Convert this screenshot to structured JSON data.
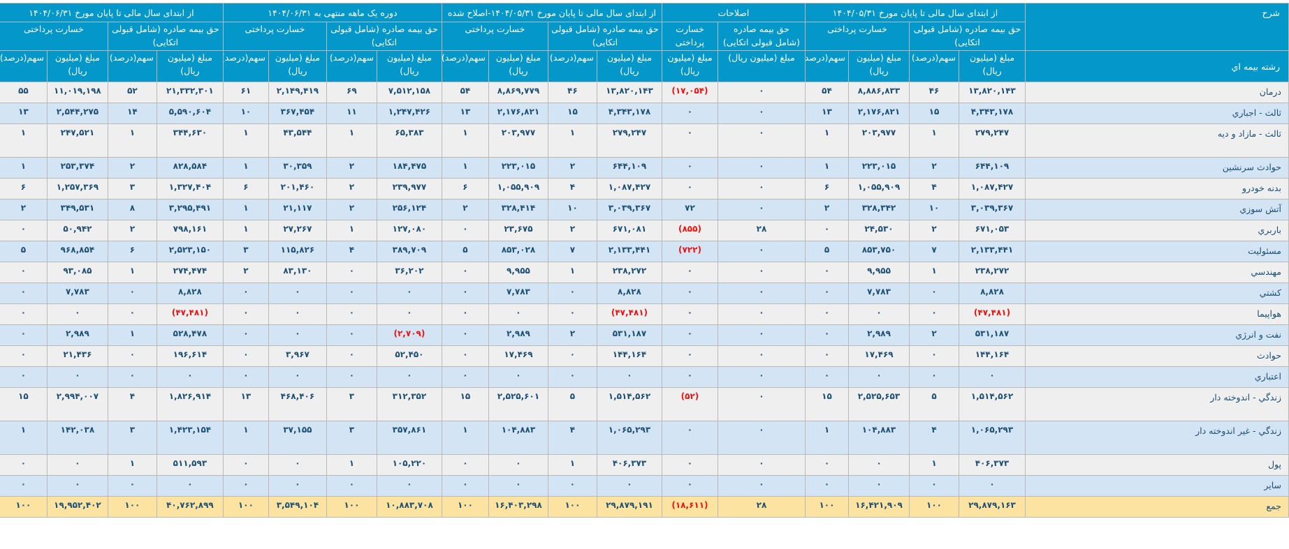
{
  "table": {
    "colors": {
      "header_bg": "#0497c9",
      "row_alt_a": "#efefef",
      "row_alt_b": "#d3e4f5",
      "total_bg": "#fde3a2",
      "negative": "#ee1111",
      "value_text": "#1d4f73"
    },
    "header": {
      "description": "شرح",
      "line_label": "رشته بیمه اي",
      "groups": [
        {
          "title": "از ابتدای سال مالی تا پایان مورخ ۱۴۰۴/۰۵/۳۱"
        },
        {
          "title": "اصلاحات"
        },
        {
          "title": "از ابتدای سال مالی تا پایان مورخ ۱۴۰۴/۰۵/۳۱-اصلاح شده"
        },
        {
          "title": "دوره یک ماهه منتهی به ۱۴۰۴/۰۶/۳۱"
        },
        {
          "title": "از ابتدای سال مالی تا پایان مورخ ۱۴۰۴/۰۶/۳۱"
        }
      ],
      "premium": "حق بیمه صادره (شامل قبولی اتکایی)",
      "loss": "خسارت پرداختی",
      "amount": "مبلغ (میلیون ریال)",
      "share": "سهم(درصد)"
    },
    "rows": [
      {
        "name": "درمان",
        "values": [
          "۱۳,۸۲۰,۱۴۳",
          "۴۶",
          "۸,۸۸۶,۸۳۳",
          "۵۴",
          "۰",
          "(۱۷,۰۵۴)",
          "۱۳,۸۲۰,۱۴۳",
          "۴۶",
          "۸,۸۶۹,۷۷۹",
          "۵۴",
          "۷,۵۱۲,۱۵۸",
          "۶۹",
          "۲,۱۴۹,۴۱۹",
          "۶۱",
          "۲۱,۳۳۲,۳۰۱",
          "۵۲",
          "۱۱,۰۱۹,۱۹۸",
          "۵۵"
        ]
      },
      {
        "name": "ثالث - اجباري",
        "values": [
          "۴,۳۴۳,۱۷۸",
          "۱۵",
          "۲,۱۷۶,۸۲۱",
          "۱۳",
          "۰",
          "۰",
          "۴,۳۴۳,۱۷۸",
          "۱۵",
          "۲,۱۷۶,۸۲۱",
          "۱۳",
          "۱,۲۴۷,۴۲۶",
          "۱۱",
          "۳۶۷,۴۵۴",
          "۱۰",
          "۵,۵۹۰,۶۰۴",
          "۱۴",
          "۲,۵۴۴,۲۷۵",
          "۱۳"
        ]
      },
      {
        "name": "ثالث - مازاد و دیه",
        "values": [
          "۲۷۹,۲۴۷",
          "۱",
          "۲۰۳,۹۷۷",
          "۱",
          "۰",
          "۰",
          "۲۷۹,۲۴۷",
          "۱",
          "۲۰۳,۹۷۷",
          "۱",
          "۶۵,۳۸۳",
          "۱",
          "۴۳,۵۴۴",
          "۱",
          "۳۴۴,۶۳۰",
          "۱",
          "۲۴۷,۵۲۱",
          "۱"
        ]
      },
      {
        "name": "حوادث سرنشين",
        "values": [
          "۶۴۴,۱۰۹",
          "۲",
          "۲۲۳,۰۱۵",
          "۱",
          "۰",
          "۰",
          "۶۴۴,۱۰۹",
          "۲",
          "۲۲۳,۰۱۵",
          "۱",
          "۱۸۴,۴۷۵",
          "۲",
          "۳۰,۳۵۹",
          "۱",
          "۸۲۸,۵۸۴",
          "۲",
          "۲۵۳,۳۷۴",
          "۱"
        ]
      },
      {
        "name": "بدنه خودرو",
        "values": [
          "۱,۰۸۷,۴۲۷",
          "۴",
          "۱,۰۵۵,۹۰۹",
          "۶",
          "۰",
          "۰",
          "۱,۰۸۷,۴۲۷",
          "۴",
          "۱,۰۵۵,۹۰۹",
          "۶",
          "۲۳۹,۹۷۷",
          "۲",
          "۲۰۱,۴۶۰",
          "۶",
          "۱,۳۲۷,۴۰۴",
          "۳",
          "۱,۲۵۷,۳۶۹",
          "۶"
        ]
      },
      {
        "name": "آتش سوزي",
        "values": [
          "۳,۰۳۹,۳۶۷",
          "۱۰",
          "۳۲۸,۳۴۲",
          "۲",
          "۰",
          "۷۲",
          "۳,۰۳۹,۳۶۷",
          "۱۰",
          "۳۲۸,۴۱۴",
          "۲",
          "۲۵۶,۱۲۴",
          "۲",
          "۲۱,۱۱۷",
          "۱",
          "۳,۲۹۵,۴۹۱",
          "۸",
          "۳۴۹,۵۳۱",
          "۲"
        ]
      },
      {
        "name": "باربري",
        "values": [
          "۶۷۱,۰۵۳",
          "۲",
          "۲۴,۵۳۰",
          "۰",
          "۲۸",
          "(۸۵۵)",
          "۶۷۱,۰۸۱",
          "۲",
          "۲۳,۶۷۵",
          "۰",
          "۱۲۷,۰۸۰",
          "۱",
          "۲۷,۲۶۷",
          "۱",
          "۷۹۸,۱۶۱",
          "۲",
          "۵۰,۹۴۲",
          "۰"
        ]
      },
      {
        "name": "مسئوليت",
        "values": [
          "۲,۱۳۳,۴۴۱",
          "۷",
          "۸۵۳,۷۵۰",
          "۵",
          "۰",
          "(۷۲۲)",
          "۲,۱۳۳,۴۴۱",
          "۷",
          "۸۵۳,۰۲۸",
          "۵",
          "۳۸۹,۷۰۹",
          "۴",
          "۱۱۵,۸۲۶",
          "۳",
          "۲,۵۲۳,۱۵۰",
          "۶",
          "۹۶۸,۸۵۴",
          "۵"
        ]
      },
      {
        "name": "مهندسي",
        "values": [
          "۲۳۸,۲۷۲",
          "۱",
          "۹,۹۵۵",
          "۰",
          "۰",
          "۰",
          "۲۳۸,۲۷۲",
          "۱",
          "۹,۹۵۵",
          "۰",
          "۳۶,۲۰۲",
          "۰",
          "۸۳,۱۳۰",
          "۲",
          "۲۷۴,۴۷۴",
          "۱",
          "۹۳,۰۸۵",
          "۰"
        ]
      },
      {
        "name": "كشتي",
        "values": [
          "۸,۸۲۸",
          "۰",
          "۷,۷۸۳",
          "۰",
          "۰",
          "۰",
          "۸,۸۲۸",
          "۰",
          "۷,۷۸۳",
          "۰",
          "۰",
          "۰",
          "۰",
          "۰",
          "۸,۸۲۸",
          "۰",
          "۷,۷۸۳",
          "۰"
        ]
      },
      {
        "name": "هواپيما",
        "values": [
          "(۴۷,۴۸۱)",
          "۰",
          "۰",
          "۰",
          "۰",
          "۰",
          "(۴۷,۴۸۱)",
          "۰",
          "۰",
          "۰",
          "۰",
          "۰",
          "۰",
          "۰",
          "(۴۷,۴۸۱)",
          "۰",
          "۰",
          "۰"
        ]
      },
      {
        "name": "نفت و انرژي",
        "values": [
          "۵۳۱,۱۸۷",
          "۲",
          "۲,۹۸۹",
          "۰",
          "۰",
          "۰",
          "۵۳۱,۱۸۷",
          "۲",
          "۲,۹۸۹",
          "۰",
          "(۲,۷۰۹)",
          "۰",
          "۰",
          "۰",
          "۵۲۸,۴۷۸",
          "۱",
          "۲,۹۸۹",
          "۰"
        ]
      },
      {
        "name": "حوادث",
        "values": [
          "۱۴۴,۱۶۴",
          "۰",
          "۱۷,۴۶۹",
          "۰",
          "۰",
          "۰",
          "۱۴۴,۱۶۴",
          "۰",
          "۱۷,۴۶۹",
          "۰",
          "۵۲,۴۵۰",
          "۰",
          "۳,۹۶۷",
          "۰",
          "۱۹۶,۶۱۴",
          "۰",
          "۲۱,۴۳۶",
          "۰"
        ]
      },
      {
        "name": "اعتباري",
        "values": [
          "۰",
          "۰",
          "۰",
          "۰",
          "۰",
          "۰",
          "۰",
          "۰",
          "۰",
          "۰",
          "۰",
          "۰",
          "۰",
          "۰",
          "۰",
          "۰",
          "۰",
          "۰"
        ]
      },
      {
        "name": "زندگي - اندوخته دار",
        "values": [
          "۱,۵۱۴,۵۶۲",
          "۵",
          "۲,۵۲۵,۶۵۳",
          "۱۵",
          "۰",
          "(۵۲)",
          "۱,۵۱۴,۵۶۲",
          "۵",
          "۲,۵۲۵,۶۰۱",
          "۱۵",
          "۳۱۲,۳۵۲",
          "۳",
          "۴۶۸,۴۰۶",
          "۱۳",
          "۱,۸۲۶,۹۱۴",
          "۴",
          "۲,۹۹۴,۰۰۷",
          "۱۵"
        ]
      },
      {
        "name": "زندگي - غير اندوخته دار",
        "values": [
          "۱,۰۶۵,۲۹۳",
          "۴",
          "۱۰۴,۸۸۳",
          "۱",
          "۰",
          "۰",
          "۱,۰۶۵,۲۹۳",
          "۴",
          "۱۰۴,۸۸۳",
          "۱",
          "۳۵۷,۸۶۱",
          "۳",
          "۳۷,۱۵۵",
          "۱",
          "۱,۴۲۳,۱۵۴",
          "۳",
          "۱۴۲,۰۳۸",
          "۱"
        ]
      },
      {
        "name": "پول",
        "values": [
          "۴۰۶,۳۷۳",
          "۱",
          "۰",
          "۰",
          "۰",
          "۰",
          "۴۰۶,۳۷۳",
          "۱",
          "۰",
          "۰",
          "۱۰۵,۲۲۰",
          "۱",
          "۰",
          "۰",
          "۵۱۱,۵۹۳",
          "۱",
          "۰",
          "۰"
        ]
      },
      {
        "name": "ساير",
        "values": [
          "۰",
          "۰",
          "۰",
          "۰",
          "۰",
          "۰",
          "۰",
          "۰",
          "۰",
          "۰",
          "۰",
          "۰",
          "۰",
          "۰",
          "۰",
          "۰",
          "۰",
          "۰"
        ]
      }
    ],
    "total": {
      "name": "جمع",
      "values": [
        "۲۹,۸۷۹,۱۶۳",
        "۱۰۰",
        "۱۶,۴۲۱,۹۰۹",
        "۱۰۰",
        "۲۸",
        "(۱۸,۶۱۱)",
        "۲۹,۸۷۹,۱۹۱",
        "۱۰۰",
        "۱۶,۴۰۳,۲۹۸",
        "۱۰۰",
        "۱۰,۸۸۳,۷۰۸",
        "۱۰۰",
        "۳,۵۴۹,۱۰۴",
        "۱۰۰",
        "۴۰,۷۶۲,۸۹۹",
        "۱۰۰",
        "۱۹,۹۵۲,۴۰۲",
        "۱۰۰"
      ]
    }
  }
}
